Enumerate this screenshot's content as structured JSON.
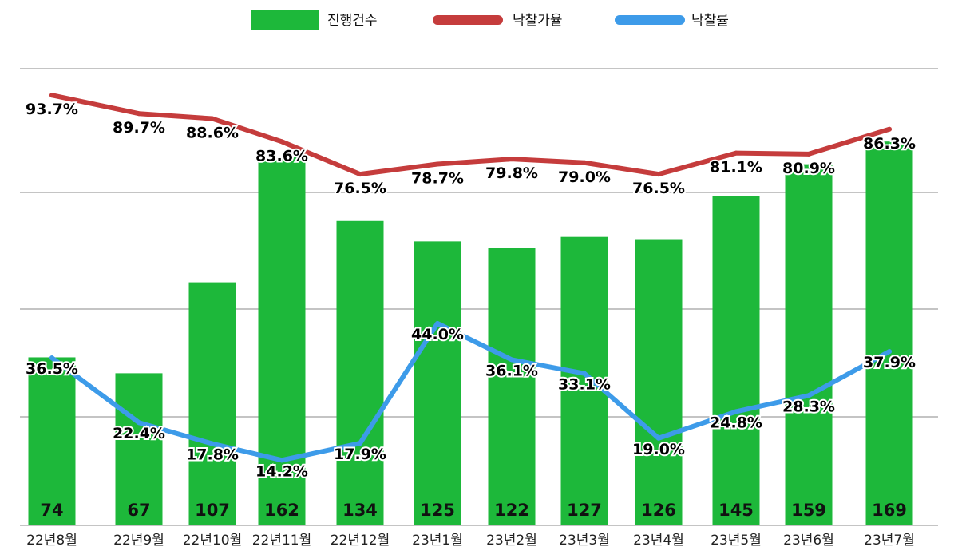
{
  "chart_data": {
    "type": "bar",
    "categories": [
      "22년8월",
      "22년9월",
      "22년10월",
      "22년11월",
      "22년12월",
      "23년1월",
      "23년2월",
      "23년3월",
      "23년4월",
      "23년5월",
      "23년6월",
      "23년7월"
    ],
    "series": [
      {
        "name": "진행건수",
        "kind": "bar",
        "color": "#1db83a",
        "values": [
          74,
          67,
          107,
          162,
          134,
          125,
          122,
          127,
          126,
          145,
          159,
          169
        ],
        "labels": [
          "74",
          "67",
          "107",
          "162",
          "134",
          "125",
          "122",
          "127",
          "126",
          "145",
          "159",
          "169"
        ]
      },
      {
        "name": "낙찰가율",
        "kind": "line",
        "color": "#c53c3c",
        "values": [
          93.7,
          89.7,
          88.6,
          83.6,
          76.5,
          78.7,
          79.8,
          79.0,
          76.5,
          81.1,
          80.9,
          86.3
        ],
        "labels": [
          "93.7%",
          "89.7%",
          "88.6%",
          "83.6%",
          "76.5%",
          "78.7%",
          "79.8%",
          "79.0%",
          "76.5%",
          "81.1%",
          "80.9%",
          "86.3%"
        ]
      },
      {
        "name": "낙찰률",
        "kind": "line",
        "color": "#3d9be9",
        "values": [
          36.5,
          22.4,
          17.8,
          14.2,
          17.9,
          44.0,
          36.1,
          33.1,
          19.0,
          24.8,
          28.3,
          37.9
        ],
        "labels": [
          "36.5%",
          "22.4%",
          "17.8%",
          "14.2%",
          "17.9%",
          "44.0%",
          "36.1%",
          "33.1%",
          "19.0%",
          "24.8%",
          "28.3%",
          "37.9%"
        ]
      }
    ],
    "bar_ylim": [
      0,
      200
    ],
    "line_ylim": [
      0,
      110
    ],
    "grid": true,
    "legend": "top-center",
    "title": "",
    "xlabel": "",
    "ylabel": ""
  }
}
